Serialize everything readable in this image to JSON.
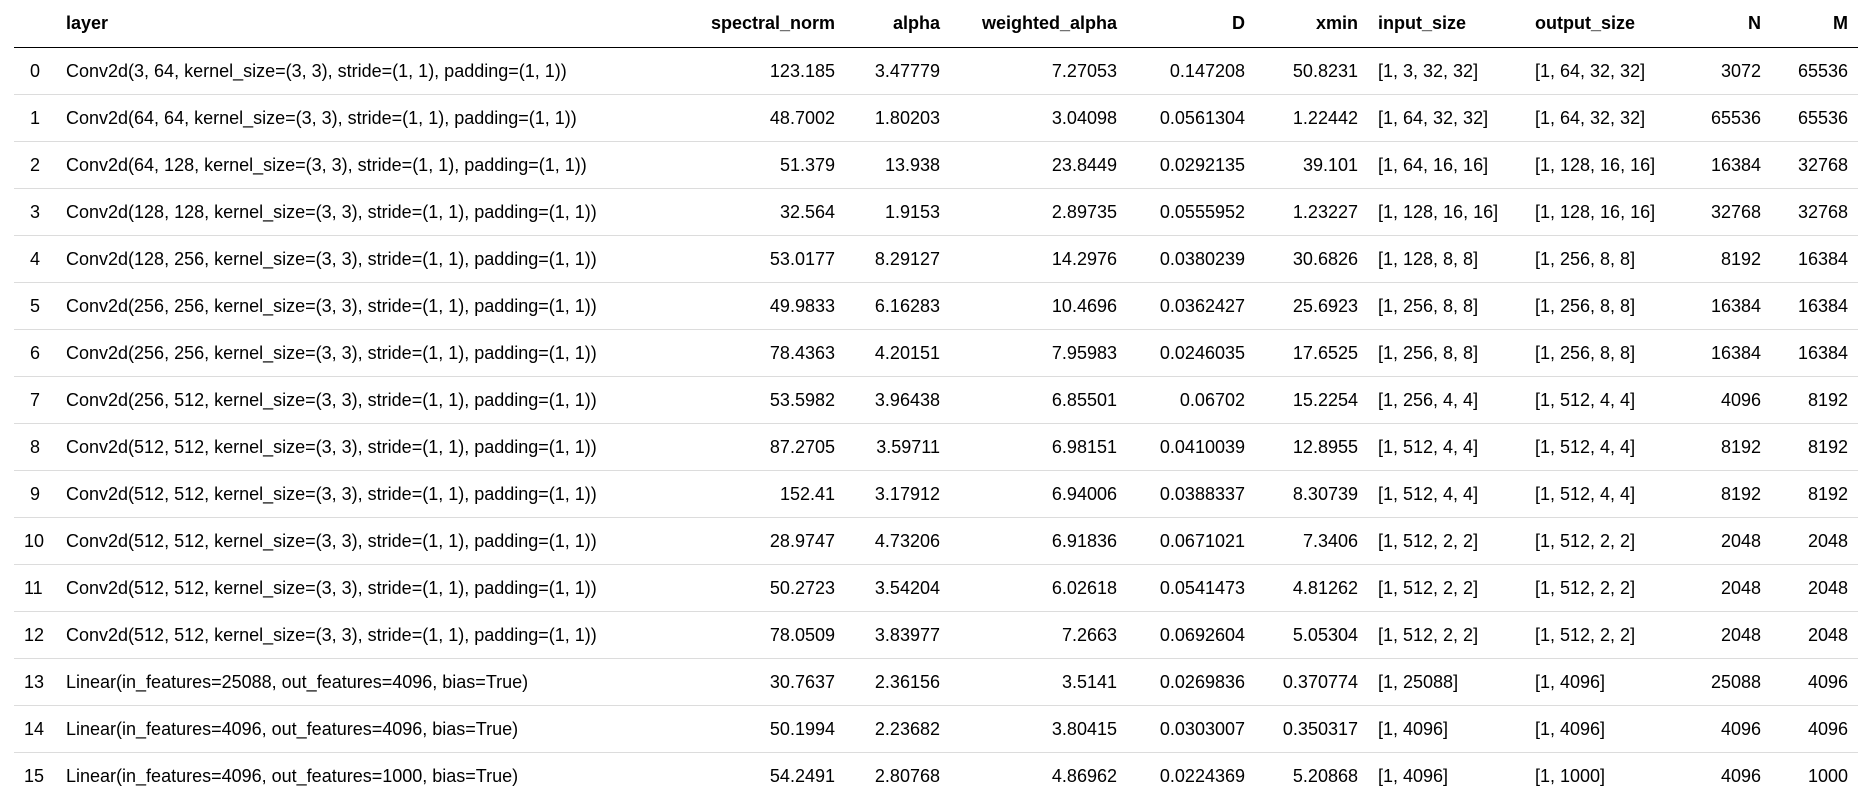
{
  "table": {
    "columns": [
      "",
      "layer",
      "spectral_norm",
      "alpha",
      "weighted_alpha",
      "D",
      "xmin",
      "input_size",
      "output_size",
      "N",
      "M"
    ],
    "rows": [
      [
        "0",
        "Conv2d(3, 64, kernel_size=(3, 3), stride=(1, 1), padding=(1, 1))",
        "123.185",
        "3.47779",
        "7.27053",
        "0.147208",
        "50.8231",
        "[1, 3, 32, 32]",
        "[1, 64, 32, 32]",
        "3072",
        "65536"
      ],
      [
        "1",
        "Conv2d(64, 64, kernel_size=(3, 3), stride=(1, 1), padding=(1, 1))",
        "48.7002",
        "1.80203",
        "3.04098",
        "0.0561304",
        "1.22442",
        "[1, 64, 32, 32]",
        "[1, 64, 32, 32]",
        "65536",
        "65536"
      ],
      [
        "2",
        "Conv2d(64, 128, kernel_size=(3, 3), stride=(1, 1), padding=(1, 1))",
        "51.379",
        "13.938",
        "23.8449",
        "0.0292135",
        "39.101",
        "[1, 64, 16, 16]",
        "[1, 128, 16, 16]",
        "16384",
        "32768"
      ],
      [
        "3",
        "Conv2d(128, 128, kernel_size=(3, 3), stride=(1, 1), padding=(1, 1))",
        "32.564",
        "1.9153",
        "2.89735",
        "0.0555952",
        "1.23227",
        "[1, 128, 16, 16]",
        "[1, 128, 16, 16]",
        "32768",
        "32768"
      ],
      [
        "4",
        "Conv2d(128, 256, kernel_size=(3, 3), stride=(1, 1), padding=(1, 1))",
        "53.0177",
        "8.29127",
        "14.2976",
        "0.0380239",
        "30.6826",
        "[1, 128, 8, 8]",
        "[1, 256, 8, 8]",
        "8192",
        "16384"
      ],
      [
        "5",
        "Conv2d(256, 256, kernel_size=(3, 3), stride=(1, 1), padding=(1, 1))",
        "49.9833",
        "6.16283",
        "10.4696",
        "0.0362427",
        "25.6923",
        "[1, 256, 8, 8]",
        "[1, 256, 8, 8]",
        "16384",
        "16384"
      ],
      [
        "6",
        "Conv2d(256, 256, kernel_size=(3, 3), stride=(1, 1), padding=(1, 1))",
        "78.4363",
        "4.20151",
        "7.95983",
        "0.0246035",
        "17.6525",
        "[1, 256, 8, 8]",
        "[1, 256, 8, 8]",
        "16384",
        "16384"
      ],
      [
        "7",
        "Conv2d(256, 512, kernel_size=(3, 3), stride=(1, 1), padding=(1, 1))",
        "53.5982",
        "3.96438",
        "6.85501",
        "0.06702",
        "15.2254",
        "[1, 256, 4, 4]",
        "[1, 512, 4, 4]",
        "4096",
        "8192"
      ],
      [
        "8",
        "Conv2d(512, 512, kernel_size=(3, 3), stride=(1, 1), padding=(1, 1))",
        "87.2705",
        "3.59711",
        "6.98151",
        "0.0410039",
        "12.8955",
        "[1, 512, 4, 4]",
        "[1, 512, 4, 4]",
        "8192",
        "8192"
      ],
      [
        "9",
        "Conv2d(512, 512, kernel_size=(3, 3), stride=(1, 1), padding=(1, 1))",
        "152.41",
        "3.17912",
        "6.94006",
        "0.0388337",
        "8.30739",
        "[1, 512, 4, 4]",
        "[1, 512, 4, 4]",
        "8192",
        "8192"
      ],
      [
        "10",
        "Conv2d(512, 512, kernel_size=(3, 3), stride=(1, 1), padding=(1, 1))",
        "28.9747",
        "4.73206",
        "6.91836",
        "0.0671021",
        "7.3406",
        "[1, 512, 2, 2]",
        "[1, 512, 2, 2]",
        "2048",
        "2048"
      ],
      [
        "11",
        "Conv2d(512, 512, kernel_size=(3, 3), stride=(1, 1), padding=(1, 1))",
        "50.2723",
        "3.54204",
        "6.02618",
        "0.0541473",
        "4.81262",
        "[1, 512, 2, 2]",
        "[1, 512, 2, 2]",
        "2048",
        "2048"
      ],
      [
        "12",
        "Conv2d(512, 512, kernel_size=(3, 3), stride=(1, 1), padding=(1, 1))",
        "78.0509",
        "3.83977",
        "7.2663",
        "0.0692604",
        "5.05304",
        "[1, 512, 2, 2]",
        "[1, 512, 2, 2]",
        "2048",
        "2048"
      ],
      [
        "13",
        "Linear(in_features=25088, out_features=4096, bias=True)",
        "30.7637",
        "2.36156",
        "3.5141",
        "0.0269836",
        "0.370774",
        "[1, 25088]",
        "[1, 4096]",
        "25088",
        "4096"
      ],
      [
        "14",
        "Linear(in_features=4096, out_features=4096, bias=True)",
        "50.1994",
        "2.23682",
        "3.80415",
        "0.0303007",
        "0.350317",
        "[1, 4096]",
        "[1, 4096]",
        "4096",
        "4096"
      ],
      [
        "15",
        "Linear(in_features=4096, out_features=1000, bias=True)",
        "54.2491",
        "2.80768",
        "4.86962",
        "0.0224369",
        "5.20868",
        "[1, 4096]",
        "[1, 1000]",
        "4096",
        "1000"
      ]
    ]
  }
}
